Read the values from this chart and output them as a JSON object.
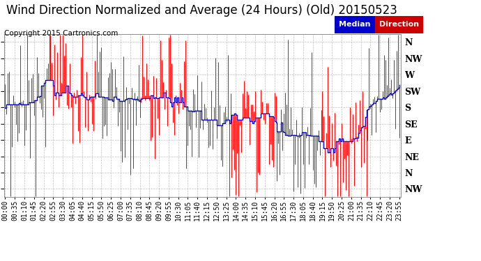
{
  "title": "Wind Direction Normalized and Average (24 Hours) (Old) 20150523",
  "copyright": "Copyright 2015 Cartronics.com",
  "legend_median_label": "Median",
  "legend_direction_label": "Direction",
  "ytick_labels": [
    "N",
    "NW",
    "W",
    "SW",
    "S",
    "SE",
    "E",
    "NE",
    "N",
    "NW"
  ],
  "ytick_values": [
    0,
    1,
    2,
    3,
    4,
    5,
    6,
    7,
    8,
    9
  ],
  "ylim": [
    -0.5,
    9.5
  ],
  "background_color": "#ffffff",
  "grid_color": "#aaaaaa",
  "red_color": "#ff0000",
  "blue_color": "#0000cc",
  "title_fontsize": 12,
  "copyright_fontsize": 7.5,
  "tick_fontsize": 7
}
